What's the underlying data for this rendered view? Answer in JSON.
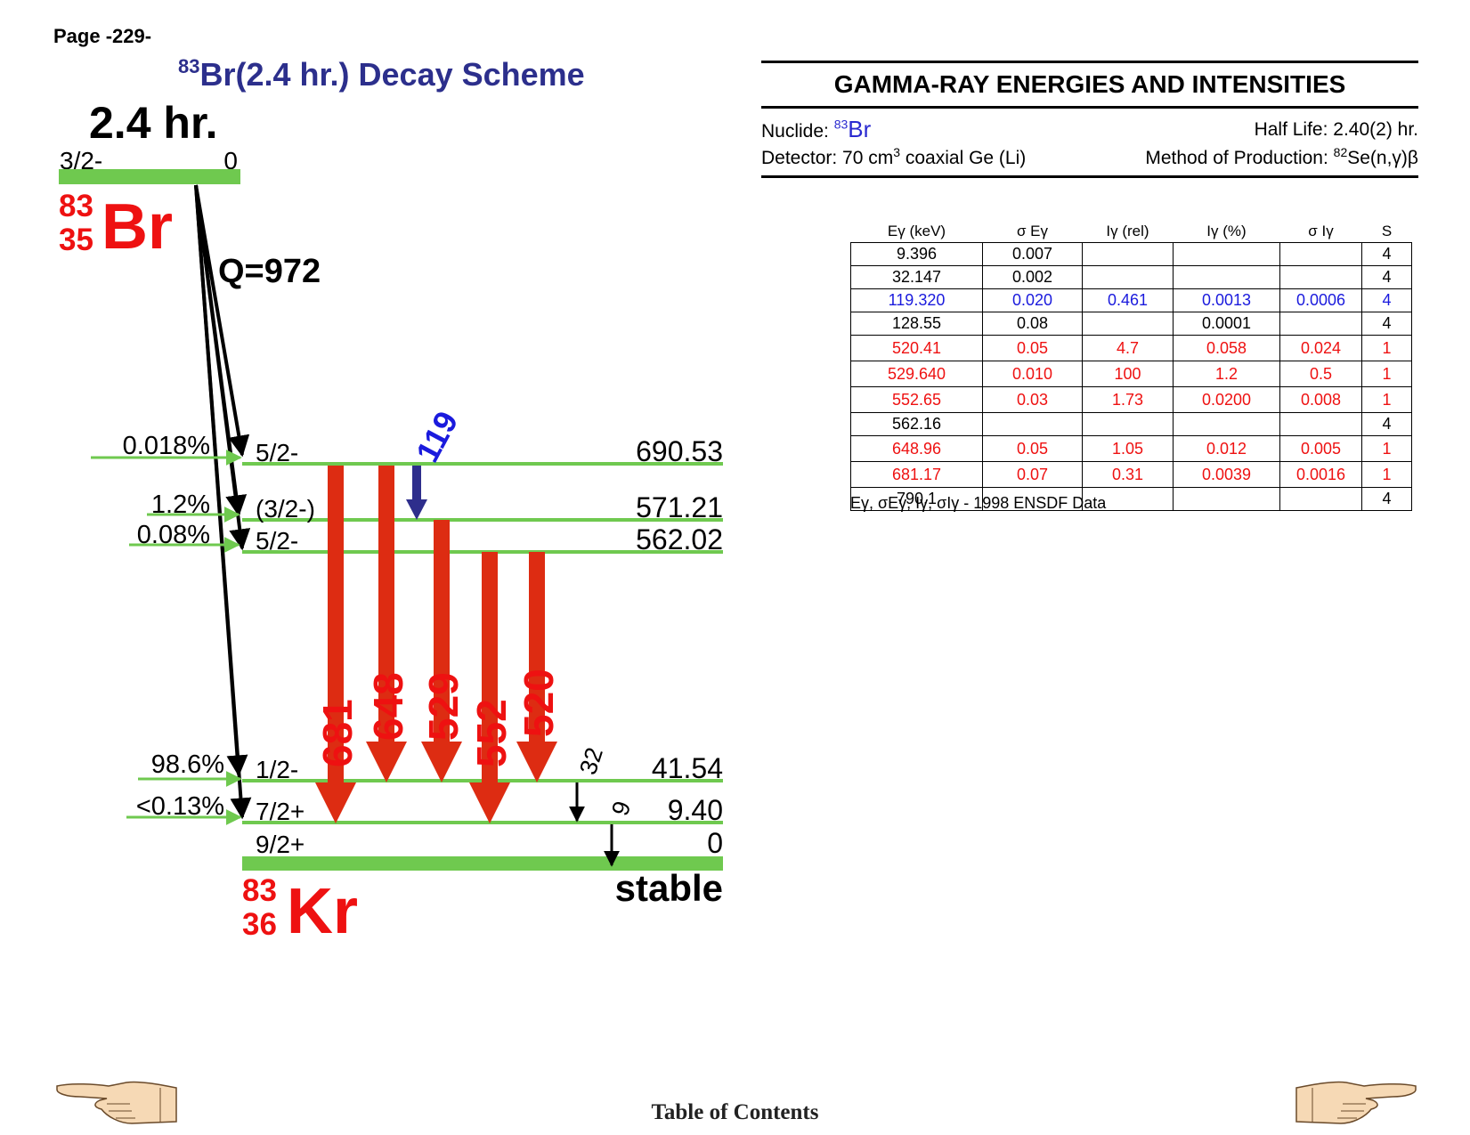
{
  "page": {
    "number": "Page -229-"
  },
  "title": {
    "sup": "83",
    "text": "Br(2.4 hr.) Decay Scheme"
  },
  "parent": {
    "half_life": "2.4 hr.",
    "spin": "3/2-",
    "energy": "0",
    "mass": "83",
    "z": "35",
    "symbol": "Br",
    "q_value": "Q=972"
  },
  "daughter": {
    "mass": "83",
    "z": "36",
    "symbol": "Kr",
    "status": "stable"
  },
  "levels": [
    {
      "spin": "5/2-",
      "energy": "690.53",
      "feed": "0.018%"
    },
    {
      "spin": "(3/2-)",
      "energy": "571.21",
      "feed": "1.2%"
    },
    {
      "spin": "5/2-",
      "energy": "562.02",
      "feed": "0.08%"
    },
    {
      "spin": "1/2-",
      "energy": "41.54",
      "feed": "98.6%"
    },
    {
      "spin": "7/2+",
      "energy": "9.40",
      "feed": "<0.13%"
    },
    {
      "spin": "9/2+",
      "energy": "0",
      "feed": ""
    }
  ],
  "transitions": [
    {
      "label": "681",
      "color": "#dd2c12"
    },
    {
      "label": "648",
      "color": "#dd2c12"
    },
    {
      "label": "529",
      "color": "#dd2c12"
    },
    {
      "label": "552",
      "color": "#dd2c12"
    },
    {
      "label": "520",
      "color": "#dd2c12"
    },
    {
      "label": "119",
      "color": "#2e2e8c"
    },
    {
      "label": "32",
      "color": "#000000"
    },
    {
      "label": "9",
      "color": "#000000"
    }
  ],
  "colors": {
    "level_line": "#6fc94f",
    "strong_arrow": "#dd2c12",
    "title": "#2c2f8c",
    "red_text": "#ee1111",
    "blue_text": "#1a1add"
  },
  "gamma": {
    "title": "GAMMA-RAY ENERGIES AND INTENSITIES",
    "nuclide_label": "Nuclide:",
    "nuclide_mass": "83",
    "nuclide_symbol": "Br",
    "half_life": "Half Life: 2.40(2) hr.",
    "detector_a": "Detector: 70 cm",
    "detector_sup": "3",
    "detector_b": " coaxial Ge (Li)",
    "method_a": "Method of Production: ",
    "method_sup": "82",
    "method_b": "Se(n,γ)β",
    "headers": [
      "Eγ (keV)",
      "σ Eγ",
      "Iγ (rel)",
      "Iγ (%)",
      "σ Iγ",
      "S"
    ],
    "rows": [
      {
        "style": "plain",
        "cells": [
          "9.396",
          "0.007",
          "",
          "",
          "",
          "4"
        ]
      },
      {
        "style": "plain",
        "cells": [
          "32.147",
          "0.002",
          "",
          "",
          "",
          "4"
        ]
      },
      {
        "style": "blue",
        "cells": [
          "119.320",
          "0.020",
          "0.461",
          "0.0013",
          "0.0006",
          "4"
        ]
      },
      {
        "style": "plain",
        "cells": [
          "128.55",
          "0.08",
          "",
          "0.0001",
          "",
          "4"
        ]
      },
      {
        "style": "red",
        "cells": [
          "520.41",
          "0.05",
          "4.7",
          "0.058",
          "0.024",
          "1"
        ]
      },
      {
        "style": "red",
        "cells": [
          "529.640",
          "0.010",
          "100",
          "1.2",
          "0.5",
          "1"
        ]
      },
      {
        "style": "red",
        "cells": [
          "552.65",
          "0.03",
          "1.73",
          "0.0200",
          "0.008",
          "1"
        ]
      },
      {
        "style": "plain",
        "cells": [
          "562.16",
          "",
          "",
          "",
          "",
          "4"
        ]
      },
      {
        "style": "red",
        "cells": [
          "648.96",
          "0.05",
          "1.05",
          "0.012",
          "0.005",
          "1"
        ]
      },
      {
        "style": "red",
        "cells": [
          "681.17",
          "0.07",
          "0.31",
          "0.0039",
          "0.0016",
          "1"
        ]
      },
      {
        "style": "plain",
        "cells": [
          "790.1",
          "",
          "",
          "",
          "",
          "4"
        ]
      }
    ],
    "footnote": "Eγ, σEγ, Iγ, σIγ -  1998 ENSDF Data"
  },
  "footer": {
    "toc": "Table of Contents",
    "prev_icon": "pointing-hand-left-icon",
    "next_icon": "pointing-hand-right-icon"
  }
}
